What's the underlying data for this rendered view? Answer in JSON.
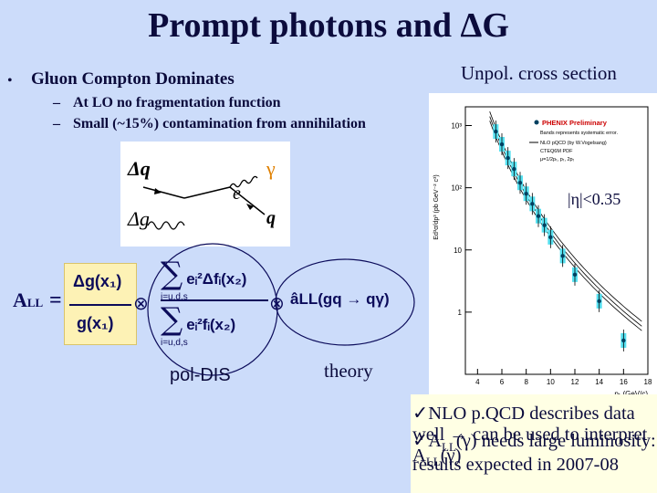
{
  "title": "Prompt photons and ΔG",
  "bullet": {
    "marker": "•",
    "text": "Gluon Compton Dominates"
  },
  "subbullets": [
    "At LO no fragmentation function",
    "Small (~15%) contamination from annihilation"
  ],
  "plot_heading": "Unpol. cross section",
  "feynman": {
    "dq": "Δq",
    "dg": "Δg",
    "gamma": "γ",
    "e": "e",
    "q": "q"
  },
  "formula": {
    "lhs": "A",
    "lhs_sub": "LL",
    "equals": "=",
    "numerator": "Δg(x₁)",
    "denominator": "g(x₁)",
    "otimes": "⊗",
    "sum_symbol": "∑",
    "sum_num_term": "eᵢ²Δfᵢ(x₂)",
    "sum_den_term": "eᵢ²fᵢ(x₂)",
    "sum_index": "i=u,d,s",
    "theory_term": "âLL(gq → qγ)"
  },
  "labels": {
    "poldis": "pol-DIS",
    "theory": "theory",
    "eta": "|η|<0.35"
  },
  "plot": {
    "ylabel": "Ed³σ/dp³ (pb GeV⁻² c³)",
    "xlabel": "pₜ (GeV/c)",
    "legend": [
      "PHENIX Preliminary",
      "Bands represents systematic error.",
      "NLO pQCD (by W.Vogelsang)",
      "CTEQ6M PDF",
      "μ=1/2pₜ, pₜ, 2pₜ"
    ],
    "yticks": [
      "10³",
      "10²",
      "10",
      "1"
    ],
    "xticks": [
      "4",
      "6",
      "8",
      "10",
      "12",
      "14",
      "16",
      "18"
    ]
  },
  "chart_data": {
    "type": "scatter",
    "title": "PHENIX Preliminary",
    "xlabel": "pₜ (GeV/c)",
    "ylabel": "Ed³σ/dp³ (pb GeV⁻² c³)",
    "xlim": [
      3,
      18
    ],
    "ylim": [
      0.1,
      2000
    ],
    "log_y": true,
    "series": [
      {
        "name": "PHENIX Preliminary",
        "x": [
          5.5,
          6.0,
          6.5,
          7.0,
          7.5,
          8.0,
          8.5,
          9.0,
          9.5,
          10.0,
          11.0,
          12.0,
          14.0,
          16.0
        ],
        "y": [
          800,
          500,
          300,
          200,
          120,
          80,
          55,
          35,
          25,
          16,
          8,
          4,
          1.5,
          0.35
        ]
      }
    ],
    "colors": {
      "points": "#00b8d8",
      "band": "#55e0f0"
    }
  },
  "conclusions": [
    {
      "check": "✓",
      "text_a": "NLO p.QCD describes data well → can be used to interpret A",
      "sub": "LL",
      "text_b": "(γ)"
    },
    {
      "check": "✓",
      "text_a": "A",
      "sub": "LL",
      "text_b": "(γ) needs large luminosity: results expected in 2007-08"
    }
  ]
}
